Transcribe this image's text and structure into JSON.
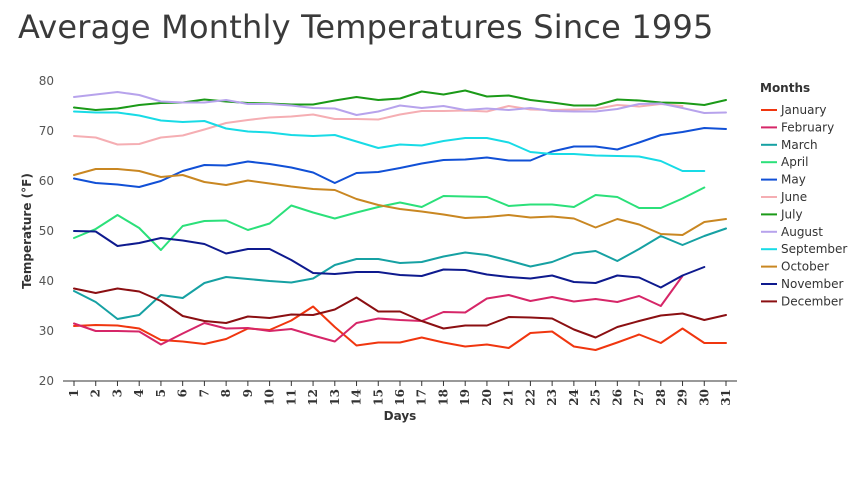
{
  "chart_data": {
    "type": "line",
    "title": "Average Monthly Temperatures Since 1995",
    "xlabel": "Days",
    "ylabel": "Temperature (°F)",
    "x": [
      1,
      2,
      3,
      4,
      5,
      6,
      7,
      8,
      9,
      10,
      11,
      12,
      13,
      14,
      15,
      16,
      17,
      18,
      19,
      20,
      21,
      22,
      23,
      24,
      25,
      26,
      27,
      28,
      29,
      30,
      31
    ],
    "ylim": [
      20,
      80
    ],
    "yticks": [
      20,
      30,
      40,
      50,
      60,
      70,
      80
    ],
    "grid": false,
    "legend_title": "Months",
    "legend_position": "right",
    "series": [
      {
        "name": "January",
        "color": "#f0360f",
        "values": [
          31.0,
          31.2,
          31.1,
          30.5,
          28.2,
          27.9,
          27.4,
          28.4,
          30.5,
          30.2,
          32.1,
          34.9,
          30.8,
          27.1,
          27.7,
          27.7,
          28.7,
          27.7,
          26.9,
          27.3,
          26.6,
          29.6,
          29.9,
          26.9,
          26.2,
          27.7,
          29.3,
          27.6,
          30.5,
          27.6,
          27.6
        ]
      },
      {
        "name": "February",
        "color": "#d62668",
        "values": [
          31.5,
          30.0,
          30.0,
          29.9,
          27.3,
          29.5,
          31.6,
          30.5,
          30.6,
          30.0,
          30.4,
          29.1,
          27.9,
          31.6,
          32.5,
          32.2,
          32.0,
          33.8,
          33.7,
          36.5,
          37.2,
          36.0,
          36.8,
          35.9,
          36.4,
          35.8,
          37.0,
          35.0,
          41.0,
          null,
          null
        ]
      },
      {
        "name": "March",
        "color": "#16a1a3",
        "values": [
          38.0,
          35.8,
          32.4,
          33.2,
          37.2,
          36.6,
          39.6,
          40.8,
          40.4,
          40.0,
          39.7,
          40.5,
          43.2,
          44.4,
          44.4,
          43.6,
          43.8,
          44.9,
          45.7,
          45.2,
          44.1,
          42.9,
          43.8,
          45.5,
          46.0,
          44.0,
          46.4,
          49.0,
          47.2,
          49.0,
          50.5
        ]
      },
      {
        "name": "April",
        "color": "#2be07a",
        "values": [
          48.6,
          50.4,
          53.2,
          50.6,
          46.2,
          51.0,
          52.0,
          52.1,
          50.2,
          51.5,
          55.1,
          53.7,
          52.5,
          53.7,
          54.8,
          55.7,
          54.8,
          57.0,
          56.9,
          56.8,
          55.0,
          55.3,
          55.3,
          54.8,
          57.2,
          56.8,
          54.6,
          54.6,
          56.5,
          58.7,
          null
        ]
      },
      {
        "name": "May",
        "color": "#1150d6",
        "values": [
          60.5,
          59.6,
          59.3,
          58.8,
          60.0,
          62.0,
          63.2,
          63.1,
          63.9,
          63.4,
          62.7,
          61.7,
          59.6,
          61.6,
          61.8,
          62.6,
          63.5,
          64.2,
          64.3,
          64.7,
          64.1,
          64.1,
          65.9,
          66.9,
          66.9,
          66.3,
          67.7,
          69.2,
          69.8,
          70.6,
          70.4
        ]
      },
      {
        "name": "June",
        "color": "#f5aeb3",
        "values": [
          69.0,
          68.7,
          67.3,
          67.4,
          68.7,
          69.1,
          70.3,
          71.6,
          72.2,
          72.7,
          72.9,
          73.3,
          72.4,
          72.4,
          72.3,
          73.3,
          74.0,
          74.0,
          74.1,
          73.9,
          75.0,
          74.3,
          74.2,
          74.3,
          74.4,
          75.2,
          74.9,
          75.4,
          75.0,
          null,
          null
        ]
      },
      {
        "name": "July",
        "color": "#1b9a18",
        "values": [
          74.7,
          74.2,
          74.5,
          75.2,
          75.6,
          75.7,
          76.3,
          75.9,
          75.6,
          75.5,
          75.3,
          75.3,
          76.1,
          76.8,
          76.2,
          76.5,
          77.9,
          77.3,
          78.1,
          76.9,
          77.1,
          76.2,
          75.7,
          75.1,
          75.1,
          76.3,
          76.1,
          75.7,
          75.6,
          75.2,
          76.2
        ]
      },
      {
        "name": "August",
        "color": "#b7a3ec",
        "values": [
          76.8,
          77.3,
          77.8,
          77.2,
          75.9,
          75.7,
          75.7,
          76.2,
          75.4,
          75.4,
          75.1,
          74.6,
          74.5,
          73.2,
          73.9,
          75.1,
          74.6,
          75.0,
          74.2,
          74.5,
          74.2,
          74.6,
          74.0,
          73.9,
          73.9,
          74.4,
          75.4,
          75.5,
          74.6,
          73.6,
          73.7
        ]
      },
      {
        "name": "September",
        "color": "#18dbe6",
        "values": [
          73.9,
          73.7,
          73.7,
          73.1,
          72.1,
          71.8,
          72.0,
          70.5,
          69.9,
          69.7,
          69.2,
          69.0,
          69.2,
          67.9,
          66.6,
          67.3,
          67.1,
          68.0,
          68.6,
          68.6,
          67.7,
          65.8,
          65.4,
          65.4,
          65.1,
          65.0,
          64.9,
          64.0,
          62.0,
          62.0,
          null
        ]
      },
      {
        "name": "October",
        "color": "#c98722",
        "values": [
          61.2,
          62.4,
          62.4,
          62.0,
          60.8,
          61.2,
          59.8,
          59.2,
          60.1,
          59.5,
          58.9,
          58.4,
          58.2,
          56.4,
          55.2,
          54.4,
          53.9,
          53.3,
          52.6,
          52.8,
          53.2,
          52.7,
          52.9,
          52.5,
          50.7,
          52.4,
          51.3,
          49.4,
          49.2,
          51.8,
          52.4
        ]
      },
      {
        "name": "November",
        "color": "#0e1a8e",
        "values": [
          50.0,
          49.9,
          47.0,
          47.6,
          48.6,
          48.1,
          47.4,
          45.5,
          46.4,
          46.4,
          44.2,
          41.6,
          41.4,
          41.8,
          41.8,
          41.2,
          41.0,
          42.3,
          42.2,
          41.3,
          40.8,
          40.5,
          41.1,
          39.8,
          39.6,
          41.1,
          40.7,
          38.7,
          41.1,
          42.8,
          null
        ]
      },
      {
        "name": "December",
        "color": "#8b0f12",
        "values": [
          38.5,
          37.6,
          38.5,
          37.9,
          36.0,
          33.0,
          32.0,
          31.6,
          32.9,
          32.6,
          33.3,
          33.2,
          34.3,
          36.7,
          33.9,
          33.9,
          32.0,
          30.5,
          31.1,
          31.1,
          32.8,
          32.7,
          32.5,
          30.3,
          28.7,
          30.8,
          32.0,
          33.1,
          33.5,
          32.2,
          33.2
        ]
      }
    ]
  }
}
